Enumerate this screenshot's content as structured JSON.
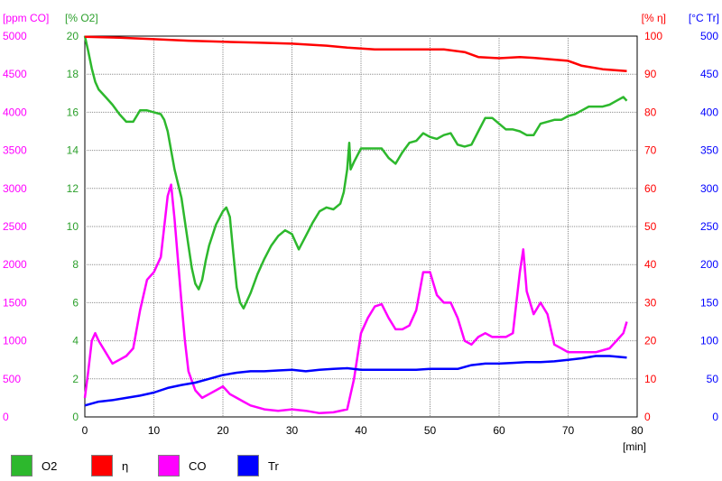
{
  "chart_data": {
    "type": "line",
    "x_axis": {
      "label": "[min]",
      "range": [
        0,
        80
      ],
      "ticks": [
        "0",
        "10",
        "20",
        "30",
        "40",
        "50",
        "60",
        "70",
        "80"
      ]
    },
    "axes": {
      "co": {
        "label": "[ppm CO]",
        "color": "#ff00ff",
        "range": [
          0,
          5000
        ],
        "side": "left",
        "ticks": [
          "0",
          "500",
          "1000",
          "1500",
          "2000",
          "2500",
          "3000",
          "3500",
          "4000",
          "4500",
          "5000"
        ]
      },
      "o2": {
        "label": "[% O2]",
        "color": "#2ca02c",
        "range": [
          0,
          20
        ],
        "side": "left",
        "ticks": [
          "0",
          "2",
          "4",
          "6",
          "8",
          "10",
          "12",
          "14",
          "16",
          "18",
          "20"
        ]
      },
      "eta": {
        "label": "[% η]",
        "color": "#ff0000",
        "range": [
          0,
          100
        ],
        "side": "right",
        "ticks": [
          "0",
          "10",
          "20",
          "30",
          "40",
          "50",
          "60",
          "70",
          "80",
          "90",
          "100"
        ]
      },
      "tr": {
        "label": "[°C Tr]",
        "color": "#0000ff",
        "range": [
          0,
          500
        ],
        "side": "right",
        "ticks": [
          "0",
          "50",
          "100",
          "150",
          "200",
          "250",
          "300",
          "350",
          "400",
          "450",
          "500"
        ]
      }
    },
    "grid": true,
    "legend_position": "bottom",
    "series": [
      {
        "name": "O2",
        "axis": "o2",
        "color": "#2db82d",
        "x": [
          0,
          0.5,
          1,
          1.5,
          2,
          3,
          4,
          5,
          6,
          7,
          7.5,
          8,
          9,
          10,
          11,
          11.5,
          12,
          12.5,
          13,
          14,
          15,
          15.5,
          16,
          16.5,
          17,
          17.5,
          18,
          19,
          20,
          20.5,
          21,
          21.5,
          22,
          22.5,
          23,
          24,
          25,
          26,
          27,
          28,
          29,
          30,
          30.5,
          31,
          32,
          33,
          34,
          35,
          36,
          37,
          37.5,
          38,
          38.3,
          38.5,
          39,
          40,
          41,
          42,
          43,
          44,
          45,
          46,
          47,
          48,
          49,
          50,
          51,
          52,
          53,
          54,
          55,
          56,
          57,
          58,
          59,
          60,
          61,
          62,
          63,
          64,
          65,
          66,
          67,
          68,
          69,
          70,
          71,
          72,
          73,
          74,
          75,
          76,
          77,
          78,
          78.5
        ],
        "values": [
          20,
          19.2,
          18.3,
          17.6,
          17.2,
          16.8,
          16.4,
          15.9,
          15.5,
          15.5,
          15.8,
          16.1,
          16.1,
          16,
          15.9,
          15.6,
          15,
          14,
          13,
          11.5,
          9,
          7.8,
          7,
          6.7,
          7.2,
          8.2,
          9,
          10.1,
          10.8,
          11,
          10.5,
          8.6,
          6.8,
          6,
          5.7,
          6.5,
          7.5,
          8.3,
          9,
          9.5,
          9.8,
          9.6,
          9.2,
          8.8,
          9.5,
          10.2,
          10.8,
          11,
          10.9,
          11.2,
          11.8,
          13,
          14.4,
          13,
          13.4,
          14.1,
          14.1,
          14.1,
          14.1,
          13.6,
          13.3,
          13.9,
          14.4,
          14.5,
          14.9,
          14.7,
          14.6,
          14.8,
          14.9,
          14.3,
          14.2,
          14.3,
          15,
          15.7,
          15.7,
          15.4,
          15.1,
          15.1,
          15,
          14.8,
          14.8,
          15.4,
          15.5,
          15.6,
          15.6,
          15.8,
          15.9,
          16.1,
          16.3,
          16.3,
          16.3,
          16.4,
          16.6,
          16.8,
          16.6
        ]
      },
      {
        "name": "η",
        "axis": "eta",
        "color": "#ff0000",
        "x": [
          0,
          5,
          10,
          15,
          20,
          25,
          30,
          35,
          38,
          42,
          45,
          50,
          52,
          55,
          57,
          60,
          63,
          65,
          70,
          72,
          75,
          78.5
        ],
        "values": [
          99.8,
          99.6,
          99.2,
          98.8,
          98.5,
          98.3,
          98,
          97.5,
          97,
          96.5,
          96.5,
          96.5,
          96.5,
          95.8,
          94.5,
          94.2,
          94.5,
          94.3,
          93.5,
          92.2,
          91.3,
          90.8
        ]
      },
      {
        "name": "CO",
        "axis": "co",
        "color": "#ff00ff",
        "x": [
          0,
          0.5,
          1,
          1.5,
          2,
          3,
          4,
          5,
          6,
          7,
          8,
          9,
          10,
          11,
          12,
          12.5,
          13,
          14,
          14.5,
          15,
          16,
          17,
          18,
          19,
          20,
          21,
          22,
          23,
          24,
          26,
          28,
          30,
          32,
          34,
          36,
          38,
          39,
          40,
          41,
          42,
          43,
          44,
          45,
          46,
          47,
          48,
          49,
          50,
          51,
          52,
          53,
          54,
          55,
          56,
          57,
          58,
          59,
          60,
          61,
          62,
          63,
          63.5,
          64,
          65,
          66,
          67,
          68,
          69,
          70,
          72,
          74,
          76,
          77,
          78,
          78.5
        ],
        "values": [
          250,
          600,
          1000,
          1100,
          1000,
          850,
          700,
          750,
          800,
          900,
          1400,
          1800,
          1900,
          2100,
          2900,
          3050,
          2600,
          1500,
          1000,
          600,
          350,
          250,
          300,
          350,
          400,
          300,
          250,
          200,
          150,
          100,
          80,
          100,
          80,
          50,
          60,
          100,
          500,
          1100,
          1300,
          1450,
          1480,
          1300,
          1150,
          1150,
          1200,
          1400,
          1900,
          1900,
          1600,
          1500,
          1500,
          1300,
          1000,
          950,
          1050,
          1100,
          1050,
          1050,
          1050,
          1100,
          1900,
          2200,
          1650,
          1350,
          1500,
          1350,
          950,
          900,
          850,
          850,
          850,
          900,
          1000,
          1100,
          1250
        ]
      },
      {
        "name": "Tr",
        "axis": "tr",
        "color": "#0000ff",
        "x": [
          0,
          2,
          4,
          6,
          8,
          10,
          12,
          14,
          16,
          18,
          20,
          22,
          24,
          26,
          28,
          30,
          32,
          34,
          36,
          38,
          40,
          42,
          44,
          46,
          48,
          50,
          52,
          54,
          56,
          58,
          60,
          62,
          64,
          66,
          68,
          70,
          72,
          74,
          76,
          78.5
        ],
        "values": [
          15,
          20,
          22,
          25,
          28,
          32,
          38,
          42,
          45,
          50,
          55,
          58,
          60,
          60,
          61,
          62,
          60,
          62,
          63,
          64,
          62,
          62,
          62,
          62,
          62,
          63,
          63,
          63,
          68,
          70,
          70,
          71,
          72,
          72,
          73,
          75,
          77,
          80,
          80,
          78
        ]
      }
    ]
  }
}
